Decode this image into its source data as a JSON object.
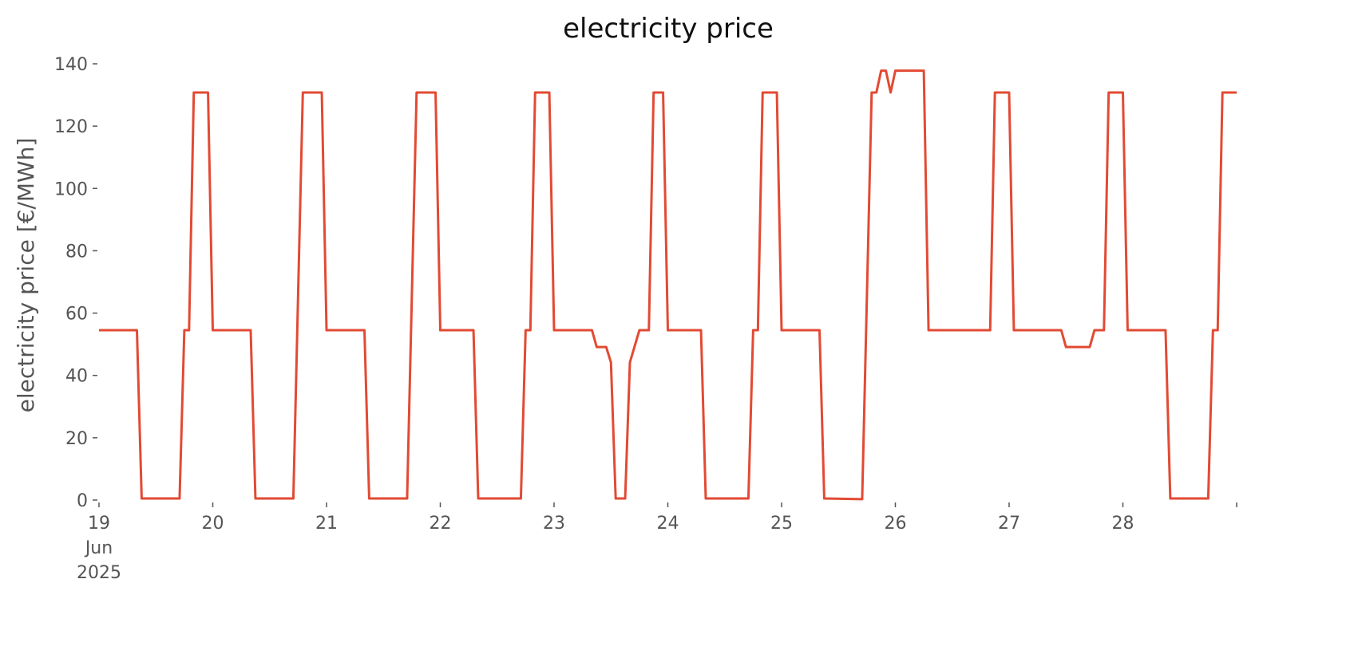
{
  "chart_data": {
    "type": "line",
    "title": "electricity price",
    "ylabel": "electricity price [€/MWh]",
    "x": [
      0,
      8,
      9,
      17,
      18,
      19,
      20,
      23,
      24,
      32,
      33,
      41,
      43,
      47,
      48,
      56,
      57,
      65,
      67,
      71,
      72,
      79,
      80,
      89,
      90,
      91,
      92,
      95,
      96,
      104,
      105,
      107,
      108,
      109,
      111,
      112,
      114,
      116,
      117,
      119,
      120,
      127,
      128,
      137,
      138,
      139,
      140,
      143,
      144,
      152,
      153,
      161,
      163,
      164,
      165,
      166,
      167,
      168,
      174,
      175,
      188,
      189,
      192,
      193,
      203,
      204,
      209,
      210,
      212,
      213,
      216,
      217,
      225,
      226,
      234,
      235,
      236,
      237,
      240
    ],
    "series": [
      {
        "name": "electricity price",
        "color": "#e24a33",
        "values": [
          54.5,
          54.5,
          0.5,
          0.5,
          54.5,
          54.5,
          130.8,
          130.8,
          54.5,
          54.5,
          0.5,
          0.5,
          130.8,
          130.8,
          54.5,
          54.5,
          0.5,
          0.5,
          130.8,
          130.8,
          54.5,
          54.5,
          0.5,
          0.5,
          54.5,
          54.5,
          130.8,
          130.8,
          54.5,
          54.5,
          49.1,
          49.1,
          44.2,
          0.5,
          0.5,
          44.2,
          54.5,
          54.5,
          130.8,
          130.8,
          54.5,
          54.5,
          0.5,
          0.5,
          54.5,
          54.5,
          130.8,
          130.8,
          54.5,
          54.5,
          0.5,
          0.3,
          130.8,
          130.8,
          137.8,
          137.8,
          130.8,
          137.8,
          137.8,
          54.5,
          54.5,
          130.8,
          130.8,
          54.5,
          54.5,
          49.1,
          49.1,
          54.5,
          54.5,
          130.8,
          130.8,
          54.5,
          54.5,
          0.5,
          0.5,
          54.5,
          54.5,
          130.8,
          130.8
        ]
      }
    ],
    "xlim": [
      0,
      240
    ],
    "xticks": [
      {
        "value": 0,
        "label": "19\nJun\n2025"
      },
      {
        "value": 24,
        "label": "20"
      },
      {
        "value": 48,
        "label": "21"
      },
      {
        "value": 72,
        "label": "22"
      },
      {
        "value": 96,
        "label": "23"
      },
      {
        "value": 120,
        "label": "24"
      },
      {
        "value": 144,
        "label": "25"
      },
      {
        "value": 168,
        "label": "26"
      },
      {
        "value": 192,
        "label": "27"
      },
      {
        "value": 216,
        "label": "28"
      },
      {
        "value": 240,
        "label": null
      }
    ],
    "ylim": [
      0,
      140
    ],
    "yticks": [
      0,
      20,
      40,
      60,
      80,
      100,
      120,
      140
    ],
    "grid": false
  }
}
